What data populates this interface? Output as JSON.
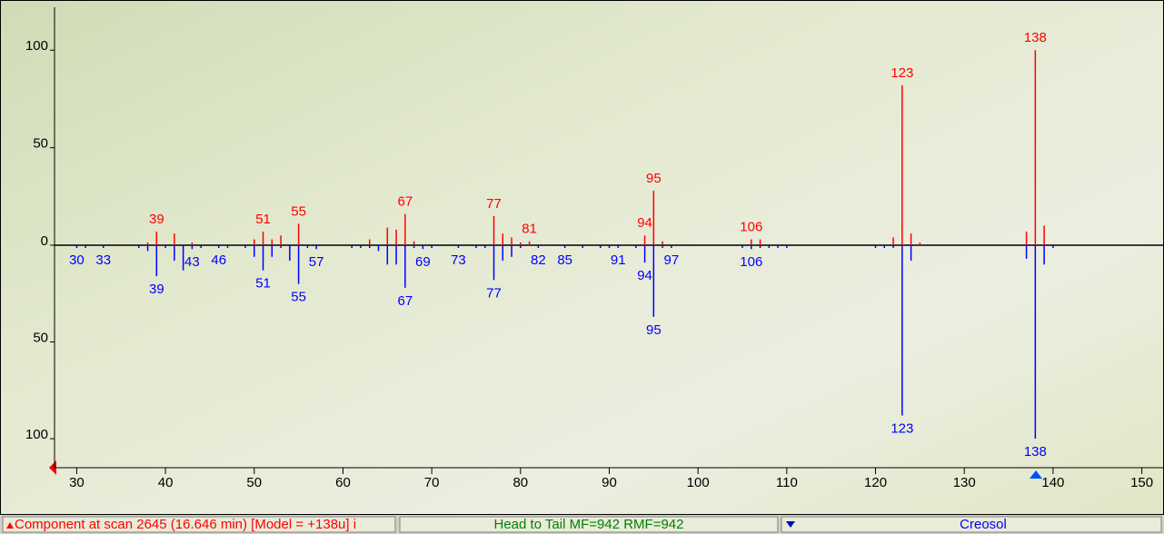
{
  "chart_data": {
    "type": "head-to-tail",
    "xlim": [
      27.5,
      152.5
    ],
    "xticks": [
      30,
      40,
      50,
      60,
      70,
      80,
      90,
      100,
      110,
      120,
      130,
      140,
      150
    ],
    "ylim": [
      0,
      122
    ],
    "yticks": [
      0,
      50,
      100
    ],
    "y2lim": [
      0,
      115
    ],
    "y2ticks": [
      50,
      100
    ],
    "series": [
      {
        "color": "#ff0000",
        "x": [
          38,
          39,
          41,
          43,
          50,
          51,
          52,
          53,
          55,
          63,
          65,
          66,
          67,
          68,
          77,
          78,
          79,
          80,
          81,
          94,
          95,
          96,
          106,
          107,
          122,
          123,
          124,
          125,
          137,
          138,
          139
        ],
        "values": [
          1,
          7,
          6,
          1,
          3,
          7,
          3,
          5,
          11,
          3,
          9,
          8,
          16,
          2,
          15,
          6,
          4,
          1,
          2,
          5,
          28,
          2,
          3,
          3,
          4,
          82,
          6,
          1,
          7,
          100,
          10
        ],
        "labeled": [
          false,
          true,
          false,
          false,
          false,
          true,
          false,
          false,
          true,
          false,
          false,
          false,
          true,
          false,
          true,
          false,
          false,
          false,
          true,
          true,
          true,
          false,
          true,
          false,
          false,
          true,
          false,
          false,
          false,
          true,
          false
        ]
      },
      {
        "color": "#0000ff",
        "axis": "y2",
        "x": [
          30,
          31,
          33,
          37,
          38,
          39,
          40,
          41,
          42,
          43,
          44,
          46,
          47,
          49,
          50,
          51,
          52,
          53,
          54,
          55,
          56,
          57,
          61,
          62,
          63,
          64,
          65,
          66,
          67,
          68,
          69,
          70,
          73,
          75,
          76,
          77,
          78,
          79,
          80,
          82,
          85,
          87,
          89,
          90,
          91,
          93,
          94,
          95,
          96,
          97,
          105,
          106,
          107,
          108,
          109,
          110,
          120,
          121,
          122,
          123,
          124,
          137,
          138,
          139,
          140
        ],
        "values": [
          1,
          1,
          1,
          1,
          3,
          16,
          1,
          8,
          13,
          2,
          1,
          1,
          1,
          1,
          6,
          13,
          6,
          1,
          8,
          20,
          1,
          2,
          1,
          1,
          1,
          3,
          10,
          10,
          22,
          1,
          2,
          1,
          1,
          1,
          1,
          18,
          8,
          6,
          1,
          1,
          1,
          1,
          1,
          1,
          1,
          1,
          9,
          37,
          1,
          1,
          1,
          2,
          1,
          1,
          1,
          1,
          1,
          1,
          1,
          88,
          8,
          7,
          100,
          10,
          1
        ],
        "labeled": [
          true,
          false,
          true,
          false,
          false,
          true,
          false,
          false,
          false,
          true,
          false,
          true,
          false,
          false,
          false,
          true,
          false,
          false,
          false,
          true,
          false,
          true,
          false,
          false,
          false,
          false,
          false,
          false,
          true,
          false,
          true,
          false,
          true,
          false,
          false,
          true,
          false,
          false,
          false,
          true,
          true,
          false,
          false,
          false,
          true,
          false,
          true,
          true,
          false,
          true,
          false,
          true,
          false,
          false,
          false,
          false,
          false,
          false,
          false,
          true,
          false,
          false,
          true,
          false,
          false
        ]
      }
    ]
  },
  "status_bar": [
    "Component at scan 2645 (16.646 min) [Model = +138u] i",
    "Head to Tail MF=942 RMF=942",
    "Creosol"
  ]
}
